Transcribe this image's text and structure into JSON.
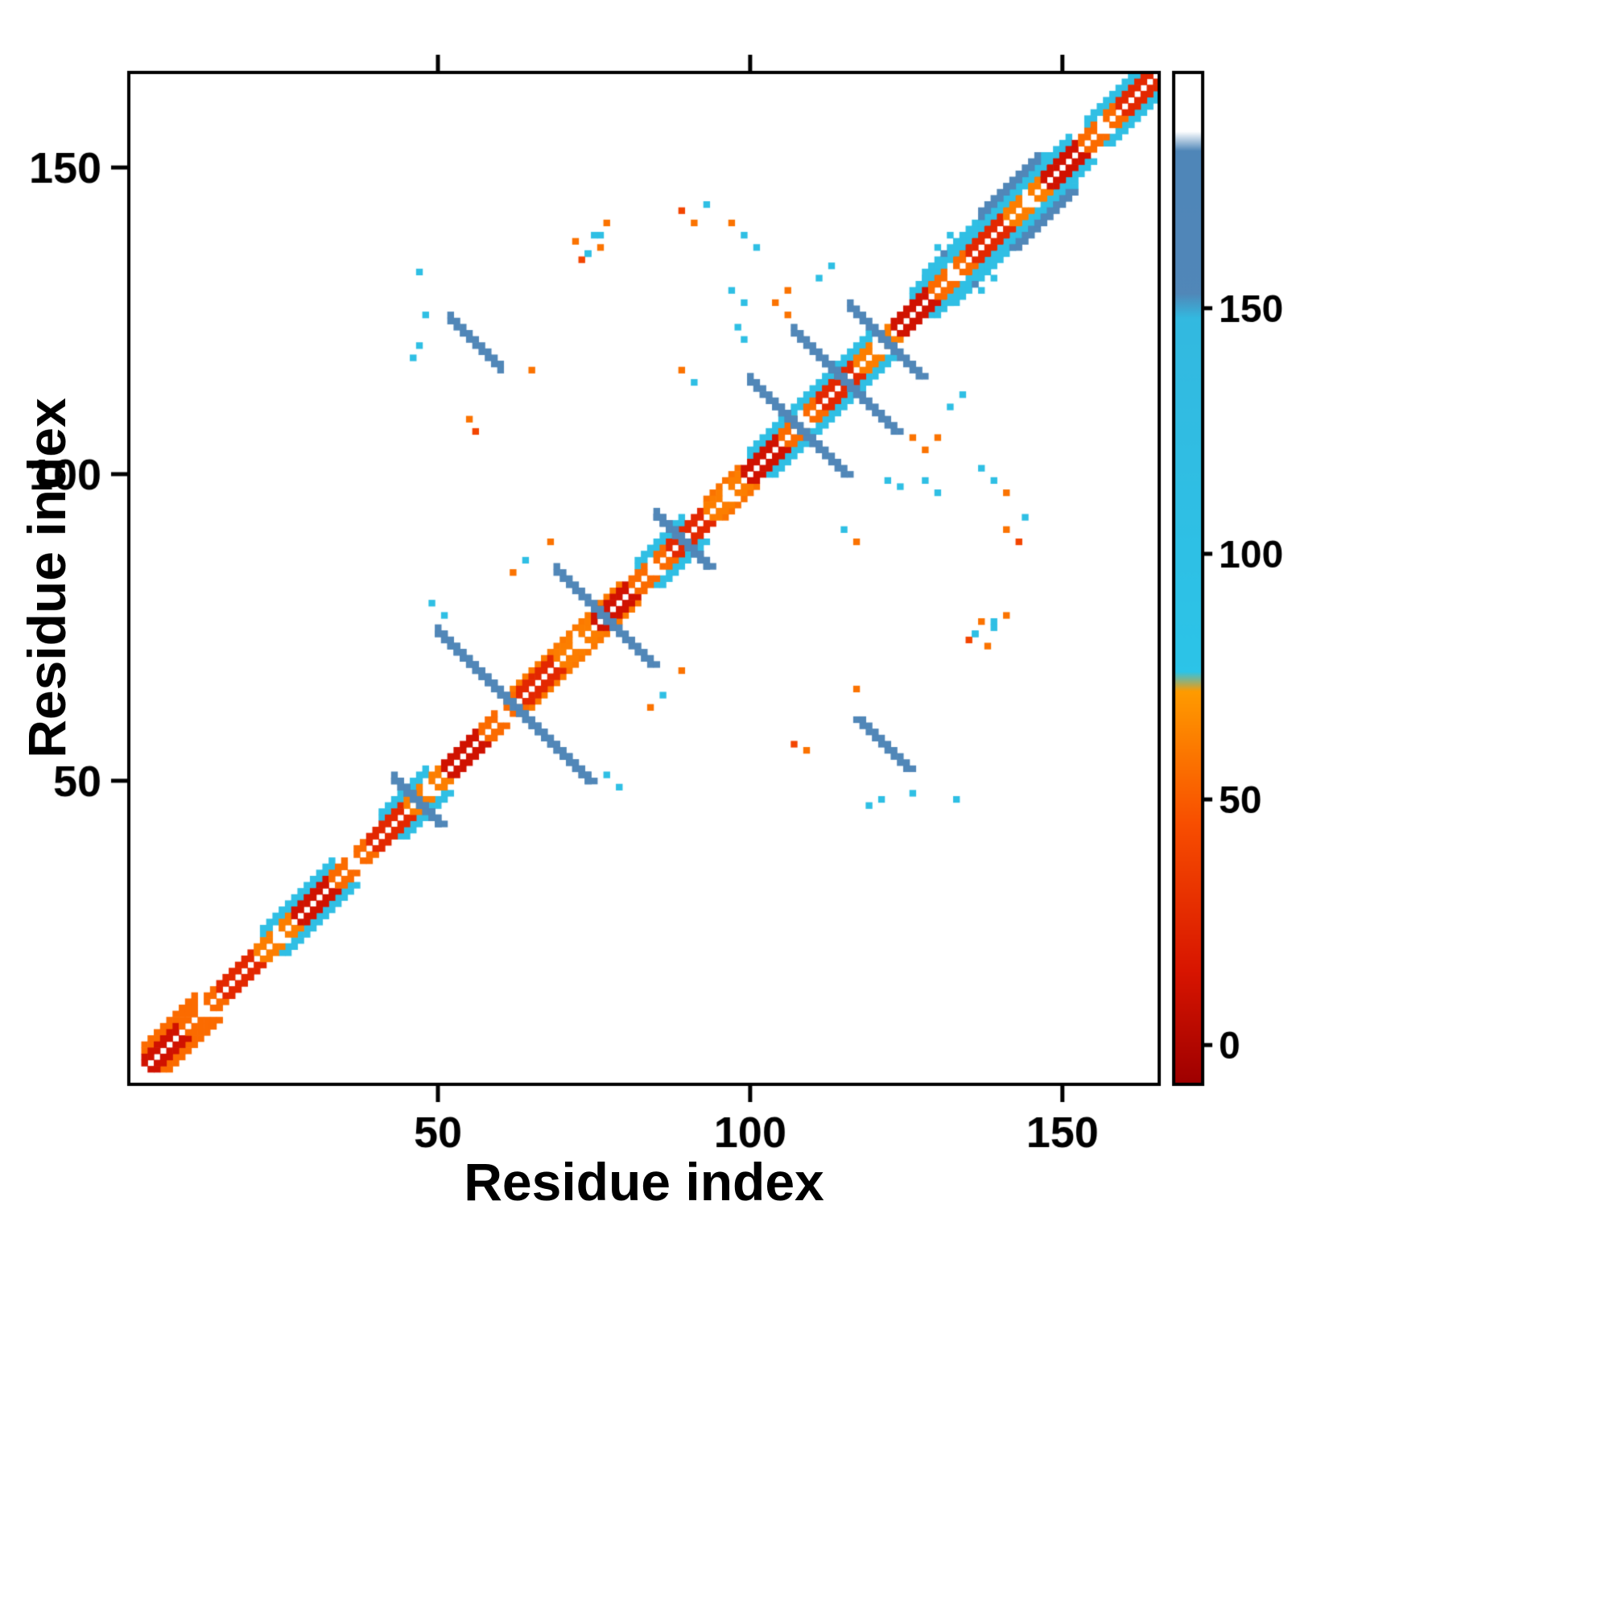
{
  "chart_data": {
    "type": "heatmap",
    "title": "",
    "xlabel": "Residue index",
    "ylabel": "Residue index",
    "x_range": [
      1,
      166
    ],
    "y_range": [
      1,
      166
    ],
    "x_ticks": [
      50,
      100,
      150
    ],
    "y_ticks": [
      50,
      100,
      150
    ],
    "grid": false,
    "symmetric": true,
    "background": "#ffffff",
    "diagonal_gap_period": 12,
    "colorbar": {
      "ticks": [
        0,
        50,
        100,
        150
      ],
      "range": [
        -8,
        198
      ],
      "stops": [
        [
          -8,
          "#9e0000"
        ],
        [
          15,
          "#d81500"
        ],
        [
          45,
          "#f84e00"
        ],
        [
          72,
          "#ff9b00"
        ],
        [
          76,
          "#2cc4e8"
        ],
        [
          148,
          "#33b9e0"
        ],
        [
          153,
          "#5187b8"
        ],
        [
          182,
          "#4f86b8"
        ],
        [
          186,
          "#ffffff"
        ],
        [
          198,
          "#ffffff"
        ]
      ]
    },
    "diagonal_segments": [
      [
        3,
        9,
        12
      ],
      [
        9,
        15,
        55
      ],
      [
        15,
        21,
        25
      ],
      [
        21,
        27,
        62
      ],
      [
        27,
        33,
        12
      ],
      [
        33,
        39,
        55
      ],
      [
        39,
        45,
        25
      ],
      [
        45,
        51,
        62
      ],
      [
        51,
        57,
        12
      ],
      [
        57,
        63,
        55
      ],
      [
        63,
        69,
        25
      ],
      [
        69,
        75,
        62
      ],
      [
        75,
        81,
        12
      ],
      [
        81,
        87,
        55
      ],
      [
        87,
        93,
        25
      ],
      [
        93,
        99,
        62
      ],
      [
        99,
        105,
        12
      ],
      [
        105,
        111,
        55
      ],
      [
        111,
        117,
        25
      ],
      [
        117,
        123,
        62
      ],
      [
        123,
        129,
        12
      ],
      [
        129,
        135,
        55
      ],
      [
        135,
        141,
        25
      ],
      [
        141,
        147,
        62
      ],
      [
        147,
        153,
        12
      ],
      [
        153,
        159,
        55
      ],
      [
        159,
        166,
        25
      ]
    ],
    "fringe_bands": [
      [
        3,
        12,
        3,
        4,
        55
      ],
      [
        22,
        34,
        3,
        4,
        112
      ],
      [
        41,
        49,
        3,
        4,
        112
      ],
      [
        62,
        80,
        3,
        3,
        60
      ],
      [
        82,
        90,
        3,
        4,
        112
      ],
      [
        93,
        99,
        3,
        3,
        58
      ],
      [
        100,
        120,
        3,
        4,
        112
      ],
      [
        126,
        152,
        3,
        4,
        112
      ],
      [
        154,
        163,
        3,
        4,
        112
      ]
    ],
    "anti_segments": [
      [
        50,
        74,
        25,
        158
      ],
      [
        43,
        50,
        8,
        158
      ],
      [
        69,
        84,
        10,
        158
      ],
      [
        85,
        93,
        9,
        158
      ],
      [
        100,
        115,
        12,
        158
      ],
      [
        107,
        123,
        12,
        158
      ],
      [
        52,
        125,
        9,
        158
      ],
      [
        116,
        127,
        8,
        158
      ]
    ],
    "para_segments": [
      [
        128,
        132,
        20,
        112
      ],
      [
        137,
        142,
        10,
        158
      ]
    ],
    "points": [
      [
        48,
        126,
        110
      ],
      [
        47,
        133,
        110
      ],
      [
        65,
        117,
        58
      ],
      [
        55,
        109,
        58
      ],
      [
        56,
        107,
        40
      ],
      [
        72,
        138,
        58
      ],
      [
        74,
        136,
        110
      ],
      [
        76,
        139,
        110
      ],
      [
        89,
        143,
        40
      ],
      [
        91,
        141,
        58
      ],
      [
        93,
        144,
        110
      ],
      [
        97,
        130,
        110
      ],
      [
        99,
        128,
        110
      ],
      [
        106,
        130,
        58
      ],
      [
        91,
        115,
        110
      ],
      [
        89,
        117,
        58
      ],
      [
        122,
        99,
        110
      ],
      [
        124,
        98,
        110
      ],
      [
        128,
        104,
        58
      ],
      [
        126,
        106,
        58
      ],
      [
        134,
        113,
        110
      ],
      [
        132,
        111,
        110
      ],
      [
        139,
        99,
        110
      ],
      [
        141,
        97,
        58
      ],
      [
        137,
        101,
        110
      ],
      [
        135,
        73,
        40
      ],
      [
        136,
        74,
        110
      ],
      [
        137,
        76,
        58
      ],
      [
        139,
        75,
        110
      ],
      [
        141,
        77,
        58
      ],
      [
        86,
        64,
        110
      ],
      [
        84,
        62,
        58
      ],
      [
        89,
        68,
        58
      ],
      [
        77,
        51,
        110
      ],
      [
        79,
        49,
        110
      ],
      [
        119,
        46,
        110
      ],
      [
        121,
        47,
        110
      ],
      [
        136,
        131,
        160
      ],
      [
        130,
        137,
        110
      ],
      [
        132,
        139,
        110
      ]
    ]
  }
}
